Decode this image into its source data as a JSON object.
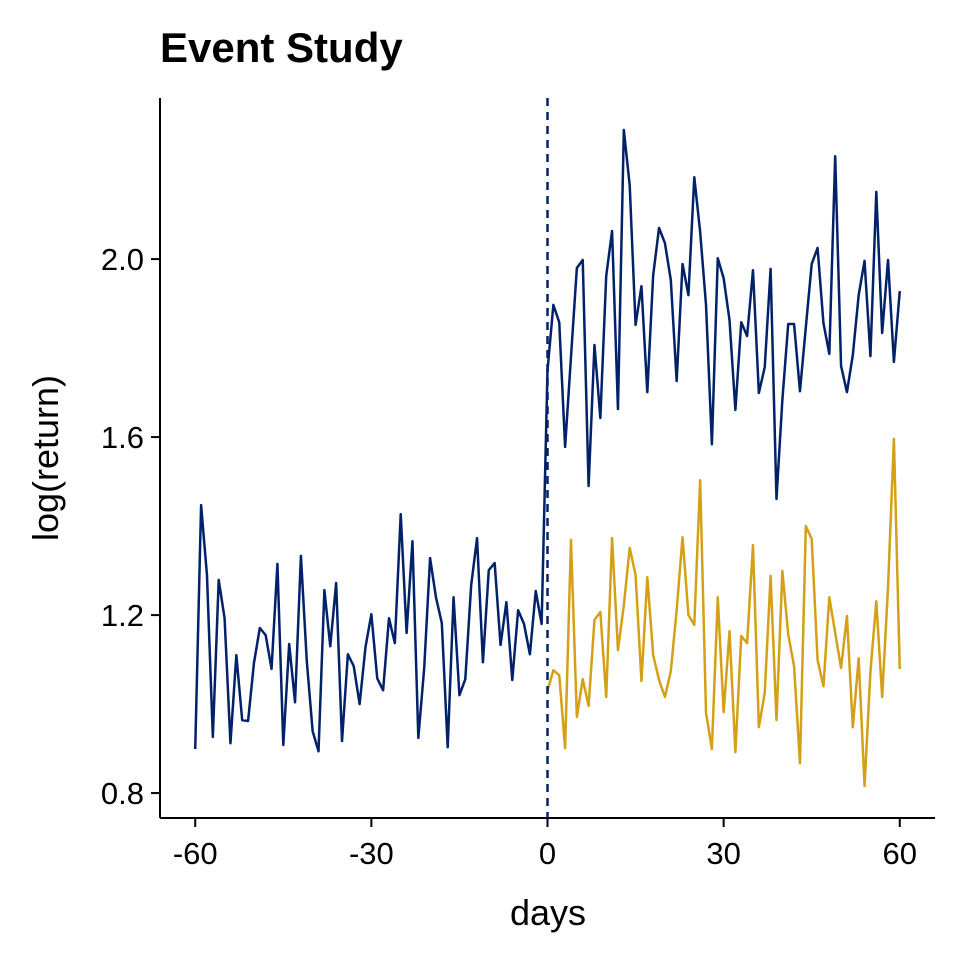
{
  "chart_data": {
    "type": "line",
    "title": "Event Study",
    "x_label": "days",
    "y_label": "log(return)",
    "xlim": [
      -66,
      66
    ],
    "xticks": [
      -60,
      -30,
      0,
      30,
      60
    ],
    "ylim": [
      0.744,
      2.362
    ],
    "yticks": [
      {
        "value": 0.8,
        "label": "0.8"
      },
      {
        "value": 1.2,
        "label": "1.2"
      },
      {
        "value": 1.6,
        "label": "1.6"
      },
      {
        "value": 2.0,
        "label": "2.0"
      }
    ],
    "vline": 0,
    "vline_color": "#012169",
    "series": [
      {
        "color": "#012169",
        "x": [
          -60,
          -59,
          -58,
          -57,
          -56,
          -55,
          -54,
          -53,
          -52,
          -51,
          -50,
          -49,
          -48,
          -47,
          -46,
          -45,
          -44,
          -43,
          -42,
          -41,
          -40,
          -39,
          -38,
          -37,
          -36,
          -35,
          -34,
          -33,
          -32,
          -31,
          -30,
          -29,
          -28,
          -27,
          -26,
          -25,
          -24,
          -23,
          -22,
          -21,
          -20,
          -19,
          -18,
          -17,
          -16,
          -15,
          -14,
          -13,
          -12,
          -11,
          -10,
          -9,
          -8,
          -7,
          -6,
          -5,
          -4,
          -3,
          -2,
          -1,
          0,
          1,
          2,
          3,
          4,
          5,
          6,
          7,
          8,
          9,
          10,
          11,
          12,
          13,
          14,
          15,
          16,
          17,
          18,
          19,
          20,
          21,
          22,
          23,
          24,
          25,
          26,
          27,
          28,
          29,
          30,
          31,
          32,
          33,
          34,
          35,
          36,
          37,
          38,
          39,
          40,
          41,
          42,
          43,
          44,
          45,
          46,
          47,
          48,
          49,
          50,
          51,
          52,
          53,
          54,
          55,
          56,
          57,
          58,
          59,
          60
        ],
        "values": [
          0.899,
          1.447,
          1.29,
          0.926,
          1.279,
          1.193,
          0.912,
          1.11,
          0.964,
          0.962,
          1.092,
          1.171,
          1.155,
          1.079,
          1.315,
          0.908,
          1.135,
          1.004,
          1.333,
          1.097,
          0.939,
          0.894,
          1.256,
          1.13,
          1.272,
          0.917,
          1.112,
          1.085,
          1.0,
          1.128,
          1.202,
          1.058,
          1.031,
          1.193,
          1.137,
          1.427,
          1.16,
          1.366,
          0.924,
          1.081,
          1.328,
          1.24,
          1.182,
          0.903,
          1.24,
          1.02,
          1.056,
          1.267,
          1.373,
          1.094,
          1.301,
          1.317,
          1.133,
          1.229,
          1.054,
          1.211,
          1.18,
          1.112,
          1.254,
          1.18,
          1.75,
          1.897,
          1.858,
          1.578,
          1.78,
          1.98,
          1.998,
          1.49,
          1.807,
          1.643,
          1.962,
          2.063,
          1.663,
          2.29,
          2.166,
          1.852,
          1.939,
          1.701,
          1.964,
          2.07,
          2.036,
          1.953,
          1.726,
          1.989,
          1.919,
          2.184,
          2.061,
          1.897,
          1.584,
          2.002,
          1.957,
          1.863,
          1.661,
          1.858,
          1.827,
          1.975,
          1.699,
          1.757,
          1.978,
          1.461,
          1.683,
          1.854,
          1.854,
          1.703,
          1.847,
          1.989,
          2.025,
          1.856,
          1.787,
          2.231,
          1.76,
          1.701,
          1.784,
          1.919,
          1.996,
          1.782,
          2.151,
          1.834,
          1.998,
          1.769,
          1.928
        ]
      },
      {
        "color": "#D4A017",
        "x": [
          0,
          1,
          2,
          3,
          4,
          5,
          6,
          7,
          8,
          9,
          10,
          11,
          12,
          13,
          14,
          15,
          16,
          17,
          18,
          19,
          20,
          21,
          22,
          23,
          24,
          25,
          26,
          27,
          28,
          29,
          30,
          31,
          32,
          33,
          34,
          35,
          36,
          37,
          38,
          39,
          40,
          41,
          42,
          43,
          44,
          45,
          46,
          47,
          48,
          49,
          50,
          51,
          52,
          53,
          54,
          55,
          56,
          57,
          58,
          59,
          60
        ],
        "values": [
          1.03,
          1.076,
          1.065,
          0.901,
          1.369,
          0.971,
          1.056,
          0.996,
          1.189,
          1.207,
          1.016,
          1.373,
          1.121,
          1.222,
          1.351,
          1.29,
          1.052,
          1.285,
          1.11,
          1.054,
          1.016,
          1.074,
          1.211,
          1.375,
          1.2,
          1.178,
          1.503,
          0.98,
          0.899,
          1.24,
          0.982,
          1.164,
          0.892,
          1.153,
          1.137,
          1.357,
          0.948,
          1.025,
          1.288,
          0.964,
          1.299,
          1.157,
          1.085,
          0.867,
          1.4,
          1.371,
          1.099,
          1.04,
          1.24,
          1.16,
          1.081,
          1.198,
          0.948,
          1.103,
          0.816,
          1.072,
          1.231,
          1.016,
          1.263,
          1.596,
          1.079
        ]
      }
    ]
  }
}
